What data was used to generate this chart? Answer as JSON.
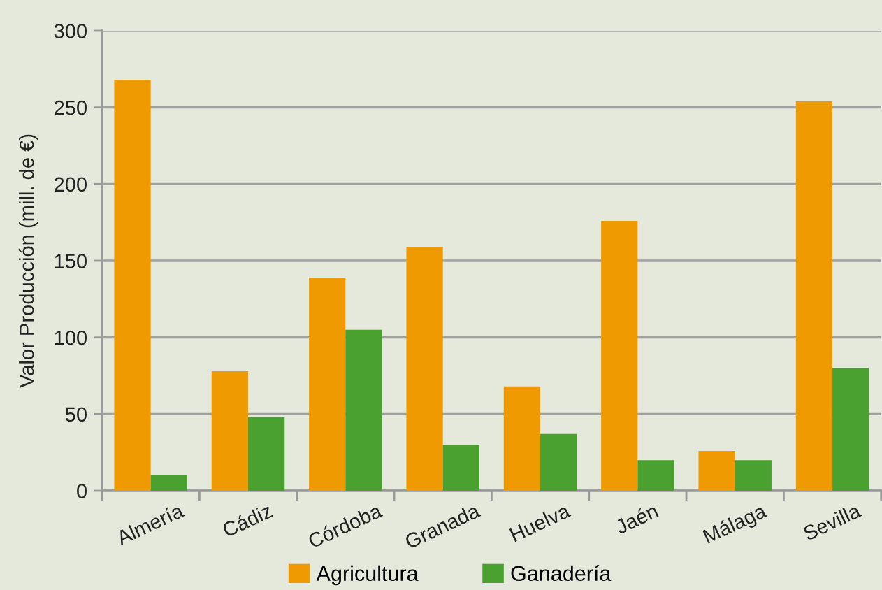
{
  "chart_data": {
    "type": "bar",
    "ylabel": "Valor Producción (mill. de €)",
    "categories": [
      "Almería",
      "Cádiz",
      "Córdoba",
      "Granada",
      "Huelva",
      "Jaén",
      "Málaga",
      "Sevilla"
    ],
    "series": [
      {
        "name": "Agricultura",
        "color": "#ee9a00",
        "values": [
          268,
          78,
          139,
          159,
          68,
          176,
          26,
          254
        ]
      },
      {
        "name": "Ganadería",
        "color": "#4aa12f",
        "values": [
          10,
          48,
          105,
          30,
          37,
          20,
          20,
          80
        ]
      }
    ],
    "ylim": [
      0,
      300
    ],
    "yticks": [
      0,
      50,
      100,
      150,
      200,
      250,
      300
    ],
    "grid": "y",
    "legend": "bottom"
  }
}
